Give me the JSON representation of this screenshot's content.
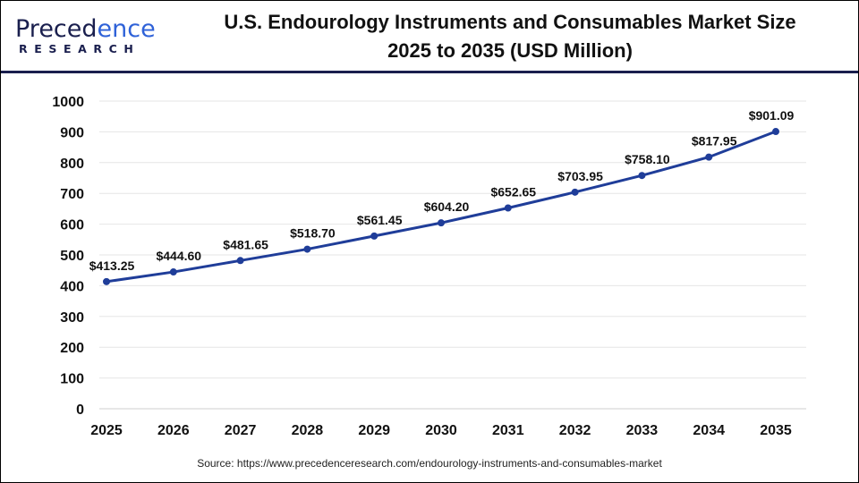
{
  "logo": {
    "brand_word": "Precedence",
    "brand_sub": "RESEARCH"
  },
  "colors": {
    "line": "#1f3d99",
    "header_rule": "#1a1f4e",
    "grid": "#e6e6e6"
  },
  "source": "Source: https://www.precedenceresearch.com/endourology-instruments-and-consumables-market",
  "chart_data": {
    "type": "line",
    "title": "U.S. Endourology Instruments and Consumables Market Size 2025 to 2035 (USD Million)",
    "title_line1": "U.S. Endourology Instruments and Consumables Market Size",
    "title_line2": "2025 to 2035 (USD Million)",
    "xlabel": "",
    "ylabel": "",
    "ylim": [
      0,
      1000
    ],
    "yticks": [
      0,
      100,
      200,
      300,
      400,
      500,
      600,
      700,
      800,
      900,
      1000
    ],
    "grid": true,
    "categories": [
      "2025",
      "2026",
      "2027",
      "2028",
      "2029",
      "2030",
      "2031",
      "2032",
      "2033",
      "2034",
      "2035"
    ],
    "values": [
      413.25,
      444.6,
      481.65,
      518.7,
      561.45,
      604.2,
      652.65,
      703.95,
      758.1,
      817.95,
      901.09
    ],
    "data_labels": [
      "$413.25",
      "$444.60",
      "$481.65",
      "$518.70",
      "$561.45",
      "$604.20",
      "$652.65",
      "$703.95",
      "$758.10",
      "$817.95",
      "$901.09"
    ]
  }
}
